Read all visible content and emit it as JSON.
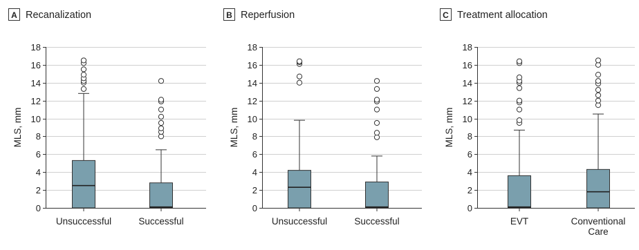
{
  "figure": {
    "box_color": "#7a9fad",
    "grid_color": "#cfcfcf",
    "text_color": "#222222"
  },
  "chart_data": [
    {
      "type": "box",
      "panel_letter": "A",
      "title": "Recanalization",
      "ylabel": "MLS, mm",
      "ylim": [
        0,
        18
      ],
      "yticks": [
        0,
        2,
        4,
        6,
        8,
        10,
        12,
        14,
        16,
        18
      ],
      "grid": true,
      "categories": [
        {
          "label_lines": [
            "Unsuccessful"
          ],
          "min": 0,
          "q1": 0,
          "median": 2.5,
          "q3": 5.3,
          "max": 12.8,
          "outliers": [
            13.3,
            14.0,
            14.2,
            14.5,
            14.9,
            15.5,
            16.2,
            16.5
          ]
        },
        {
          "label_lines": [
            "Successful"
          ],
          "min": 0,
          "q1": 0,
          "median": 0.1,
          "q3": 2.8,
          "max": 6.5,
          "outliers": [
            8.0,
            8.5,
            8.9,
            9.5,
            10.2,
            11.0,
            11.9,
            12.1,
            14.2
          ]
        }
      ]
    },
    {
      "type": "box",
      "panel_letter": "B",
      "title": "Reperfusion",
      "ylabel": "MLS, mm",
      "ylim": [
        0,
        18
      ],
      "yticks": [
        0,
        2,
        4,
        6,
        8,
        10,
        12,
        14,
        16,
        18
      ],
      "grid": true,
      "categories": [
        {
          "label_lines": [
            "Unsuccessful"
          ],
          "min": 0,
          "q1": 0,
          "median": 2.3,
          "q3": 4.2,
          "max": 9.8,
          "outliers": [
            14.0,
            14.7,
            16.1,
            16.3,
            16.4
          ]
        },
        {
          "label_lines": [
            "Successful"
          ],
          "min": 0,
          "q1": 0,
          "median": 0.1,
          "q3": 2.9,
          "max": 5.8,
          "outliers": [
            7.9,
            8.4,
            9.5,
            11.0,
            11.9,
            12.1,
            13.3,
            14.2
          ]
        }
      ]
    },
    {
      "type": "box",
      "panel_letter": "C",
      "title": "Treatment allocation",
      "ylabel": "MLS, mm",
      "ylim": [
        0,
        18
      ],
      "yticks": [
        0,
        2,
        4,
        6,
        8,
        10,
        12,
        14,
        16,
        18
      ],
      "grid": true,
      "categories": [
        {
          "label_lines": [
            "EVT"
          ],
          "min": 0,
          "q1": 0,
          "median": 0.1,
          "q3": 3.6,
          "max": 8.7,
          "outliers": [
            9.5,
            9.8,
            11.0,
            11.8,
            12.0,
            13.4,
            14.0,
            14.2,
            14.6,
            16.2,
            16.4
          ]
        },
        {
          "label_lines": [
            "Conventional",
            "Care"
          ],
          "min": 0,
          "q1": 0,
          "median": 1.8,
          "q3": 4.3,
          "max": 10.5,
          "outliers": [
            11.5,
            12.0,
            12.6,
            13.2,
            13.9,
            14.2,
            14.9,
            16.0,
            16.5
          ]
        }
      ]
    }
  ]
}
